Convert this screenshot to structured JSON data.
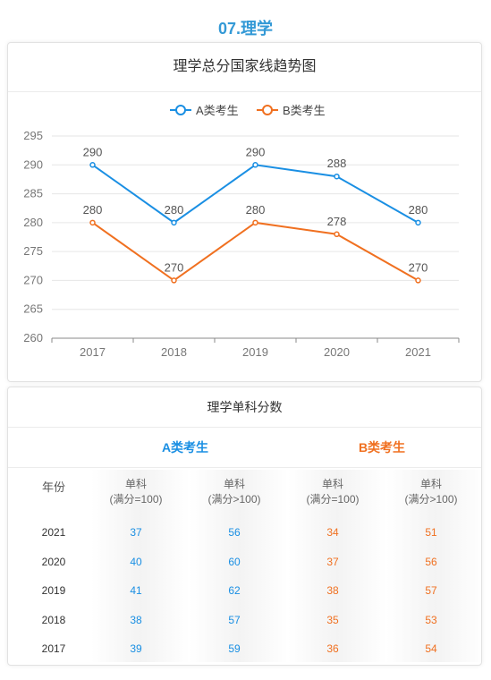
{
  "section_title": "07.理学",
  "chart_card": {
    "title": "理学总分国家线趋势图"
  },
  "chart_data": {
    "type": "line",
    "title": "理学总分国家线趋势图",
    "categories": [
      "2017",
      "2018",
      "2019",
      "2020",
      "2021"
    ],
    "series": [
      {
        "name": "A类考生",
        "color": "#1a8fe3",
        "values": [
          290,
          280,
          290,
          288,
          280
        ]
      },
      {
        "name": "B类考生",
        "color": "#f07020",
        "values": [
          280,
          270,
          280,
          278,
          270
        ]
      }
    ],
    "ylim": [
      260,
      295
    ],
    "yticks": [
      260,
      265,
      270,
      275,
      280,
      285,
      290,
      295
    ],
    "legend": "top-center",
    "grid": true,
    "data_labels": true
  },
  "table_card": {
    "title": "理学单科分数",
    "group_a": "A类考生",
    "group_b": "B类考生",
    "header": {
      "year": "年份",
      "c1_l1": "单科",
      "c1_l2": "(满分=100)",
      "c2_l1": "单科",
      "c2_l2": "(满分>100)",
      "c3_l1": "单科",
      "c3_l2": "(满分=100)",
      "c4_l1": "单科",
      "c4_l2": "(满分>100)"
    },
    "rows": [
      {
        "year": "2021",
        "a1": "37",
        "a2": "56",
        "b1": "34",
        "b2": "51"
      },
      {
        "year": "2020",
        "a1": "40",
        "a2": "60",
        "b1": "37",
        "b2": "56"
      },
      {
        "year": "2019",
        "a1": "41",
        "a2": "62",
        "b1": "38",
        "b2": "57"
      },
      {
        "year": "2018",
        "a1": "38",
        "a2": "57",
        "b1": "35",
        "b2": "53"
      },
      {
        "year": "2017",
        "a1": "39",
        "a2": "59",
        "b1": "36",
        "b2": "54"
      }
    ]
  }
}
